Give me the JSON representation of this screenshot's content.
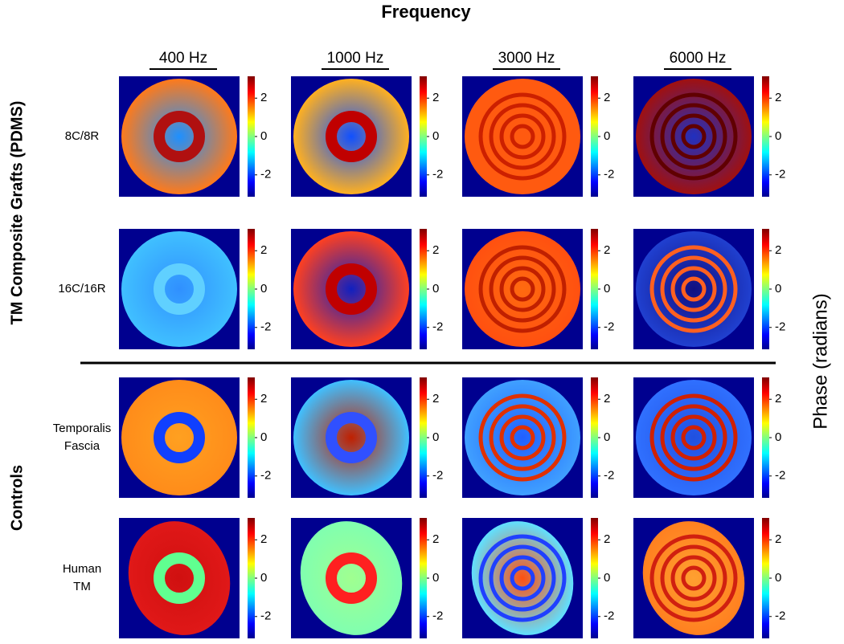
{
  "title": "Frequency",
  "columns": [
    "400 Hz",
    "1000 Hz",
    "3000 Hz",
    "6000 Hz"
  ],
  "groups": [
    "TM Composite Grafts (PDMS)",
    "Controls"
  ],
  "rows": [
    [
      "8C/8R"
    ],
    [
      "16C/16R"
    ],
    [
      "Temporalis",
      "Fascia"
    ],
    [
      "Human",
      "TM"
    ]
  ],
  "colorbar": {
    "label": "Phase (radians)",
    "ticks": [
      2,
      0,
      -2
    ],
    "range": [
      -3.14,
      3.14
    ]
  }
}
